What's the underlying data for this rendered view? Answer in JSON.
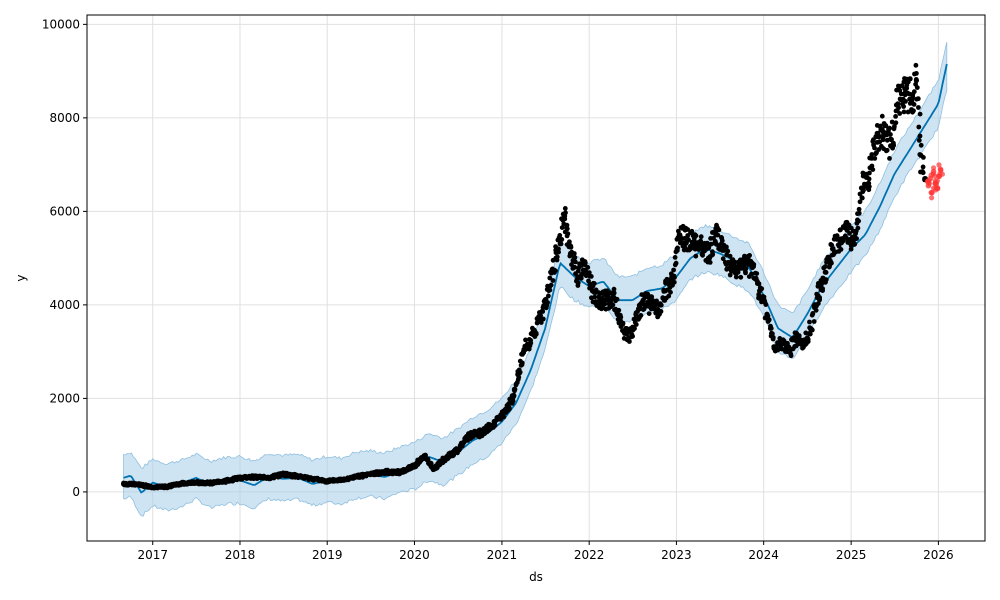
{
  "chart_data": {
    "type": "line",
    "title": "",
    "xlabel": "ds",
    "ylabel": "y",
    "xlim": [
      "2016-04-01",
      "2026-07-15"
    ],
    "ylim": [
      -1050,
      10200
    ],
    "x_ticks": [
      "2017",
      "2018",
      "2019",
      "2020",
      "2021",
      "2022",
      "2023",
      "2024",
      "2025",
      "2026"
    ],
    "y_ticks": [
      0,
      2000,
      4000,
      6000,
      8000,
      10000
    ],
    "y_tick_labels": [
      "0",
      "2000",
      "4000",
      "6000",
      "8000",
      "10000"
    ],
    "grid": true,
    "legend": "none",
    "colors": {
      "forecast_line": "#0072B2",
      "uncertainty_band": "#a6cde8",
      "observed_points": "#000000",
      "recent_points": "#ff3333"
    },
    "series": [
      {
        "kind": "forecast",
        "x": [
          "2016-09-01",
          "2016-10-01",
          "2016-11-15",
          "2017-01-01",
          "2017-03-01",
          "2017-05-01",
          "2017-07-01",
          "2017-09-01",
          "2017-11-01",
          "2018-01-01",
          "2018-03-01",
          "2018-05-01",
          "2018-07-01",
          "2018-09-01",
          "2018-11-01",
          "2019-01-01",
          "2019-03-01",
          "2019-05-01",
          "2019-07-01",
          "2019-09-01",
          "2019-11-01",
          "2020-01-01",
          "2020-03-01",
          "2020-05-01",
          "2020-07-01",
          "2020-09-01",
          "2020-11-01",
          "2021-01-01",
          "2021-03-01",
          "2021-05-01",
          "2021-07-01",
          "2021-09-01",
          "2021-11-01",
          "2022-01-01",
          "2022-03-01",
          "2022-05-01",
          "2022-07-01",
          "2022-09-01",
          "2022-11-01",
          "2023-01-01",
          "2023-03-01",
          "2023-05-01",
          "2023-07-01",
          "2023-09-01",
          "2023-11-01",
          "2024-01-01",
          "2024-03-01",
          "2024-05-01",
          "2024-07-01",
          "2024-09-01",
          "2024-11-01",
          "2025-01-01",
          "2025-03-01",
          "2025-05-01",
          "2025-07-01",
          "2025-09-01",
          "2025-11-01",
          "2026-01-01",
          "2026-02-05"
        ],
        "yhat": [
          300,
          350,
          -20,
          200,
          100,
          180,
          300,
          160,
          220,
          250,
          140,
          330,
          280,
          300,
          170,
          250,
          210,
          340,
          370,
          320,
          460,
          560,
          750,
          640,
          850,
          1100,
          1250,
          1500,
          1900,
          2600,
          3500,
          4900,
          4600,
          4400,
          4500,
          4100,
          4100,
          4300,
          4350,
          4600,
          5000,
          5200,
          5100,
          4950,
          4800,
          4200,
          3500,
          3300,
          3800,
          4400,
          4800,
          5200,
          5500,
          6100,
          6800,
          7300,
          7800,
          8300,
          9150
        ],
        "yhat_lower": [
          -150,
          -100,
          -520,
          -300,
          -400,
          -320,
          -150,
          -350,
          -260,
          -240,
          -340,
          -150,
          -200,
          -160,
          -290,
          -220,
          -260,
          -130,
          -100,
          -150,
          0,
          50,
          250,
          150,
          350,
          600,
          750,
          1050,
          1450,
          2150,
          3050,
          4400,
          4100,
          3950,
          4050,
          3600,
          3650,
          3850,
          3900,
          4100,
          4550,
          4700,
          4650,
          4450,
          4300,
          3750,
          3000,
          2850,
          3300,
          3900,
          4300,
          4700,
          5050,
          5600,
          6300,
          6850,
          7300,
          7800,
          8600
        ],
        "yhat_upper": [
          800,
          850,
          500,
          700,
          600,
          680,
          800,
          660,
          740,
          760,
          660,
          830,
          780,
          800,
          680,
          760,
          720,
          850,
          880,
          830,
          960,
          1060,
          1250,
          1150,
          1350,
          1600,
          1750,
          2000,
          2400,
          3100,
          4000,
          5400,
          5100,
          4900,
          5000,
          4600,
          4600,
          4800,
          4850,
          5100,
          5500,
          5700,
          5600,
          5450,
          5300,
          4700,
          4000,
          3800,
          4300,
          4900,
          5300,
          5700,
          6000,
          6600,
          7300,
          7800,
          8300,
          8800,
          9650
        ]
      },
      {
        "kind": "observed",
        "x": [
          "2016-09-01",
          "2016-11-01",
          "2017-01-01",
          "2017-03-01",
          "2017-05-01",
          "2017-07-01",
          "2017-09-01",
          "2017-11-01",
          "2018-01-01",
          "2018-03-01",
          "2018-05-01",
          "2018-07-01",
          "2018-09-01",
          "2018-11-01",
          "2019-01-01",
          "2019-03-01",
          "2019-05-01",
          "2019-07-01",
          "2019-09-01",
          "2019-11-01",
          "2020-01-01",
          "2020-02-15",
          "2020-03-20",
          "2020-05-01",
          "2020-07-01",
          "2020-08-15",
          "2020-10-01",
          "2020-11-15",
          "2021-01-01",
          "2021-02-15",
          "2021-04-01",
          "2021-05-15",
          "2021-07-01",
          "2021-08-15",
          "2021-09-20",
          "2021-10-15",
          "2021-11-15",
          "2021-12-15",
          "2022-01-15",
          "2022-02-15",
          "2022-03-15",
          "2022-04-15",
          "2022-05-15",
          "2022-06-15",
          "2022-07-15",
          "2022-08-15",
          "2022-09-15",
          "2022-10-15",
          "2022-11-15",
          "2022-12-15",
          "2023-01-15",
          "2023-02-15",
          "2023-03-15",
          "2023-04-15",
          "2023-05-15",
          "2023-06-15",
          "2023-07-15",
          "2023-08-15",
          "2023-09-15",
          "2023-10-15",
          "2023-11-15",
          "2023-12-15",
          "2024-01-15",
          "2024-02-15",
          "2024-03-15",
          "2024-04-15",
          "2024-05-15",
          "2024-06-15",
          "2024-07-15",
          "2024-08-15",
          "2024-09-15",
          "2024-10-15",
          "2024-11-15",
          "2024-12-15",
          "2025-01-15",
          "2025-02-15",
          "2025-03-15",
          "2025-04-15",
          "2025-05-15",
          "2025-06-15",
          "2025-07-15",
          "2025-08-15",
          "2025-09-15",
          "2025-10-01",
          "2025-10-20",
          "2025-11-05"
        ],
        "y": [
          170,
          160,
          100,
          110,
          180,
          200,
          190,
          230,
          300,
          320,
          300,
          380,
          330,
          280,
          230,
          260,
          320,
          380,
          430,
          420,
          560,
          780,
          480,
          680,
          900,
          1200,
          1250,
          1400,
          1600,
          2000,
          3000,
          3400,
          4000,
          5000,
          5900,
          5100,
          4600,
          4900,
          4300,
          4100,
          4100,
          4150,
          3600,
          3300,
          3700,
          4100,
          4000,
          3900,
          4300,
          4500,
          5500,
          5400,
          5300,
          5300,
          5000,
          5500,
          5200,
          4800,
          4700,
          4900,
          4800,
          4300,
          3800,
          3100,
          3200,
          3000,
          3300,
          3100,
          3500,
          4200,
          4700,
          5200,
          5400,
          5600,
          5300,
          6500,
          6600,
          7600,
          7700,
          7400,
          8300,
          8500,
          8500,
          8800,
          7200,
          6700
        ]
      },
      {
        "kind": "recent",
        "x": [
          "2025-11-20",
          "2025-11-28",
          "2025-12-05",
          "2025-12-12",
          "2025-12-20",
          "2025-12-28",
          "2026-01-05",
          "2026-01-10"
        ],
        "y": [
          6550,
          6700,
          6400,
          6850,
          6600,
          6500,
          6750,
          6900
        ]
      }
    ]
  }
}
